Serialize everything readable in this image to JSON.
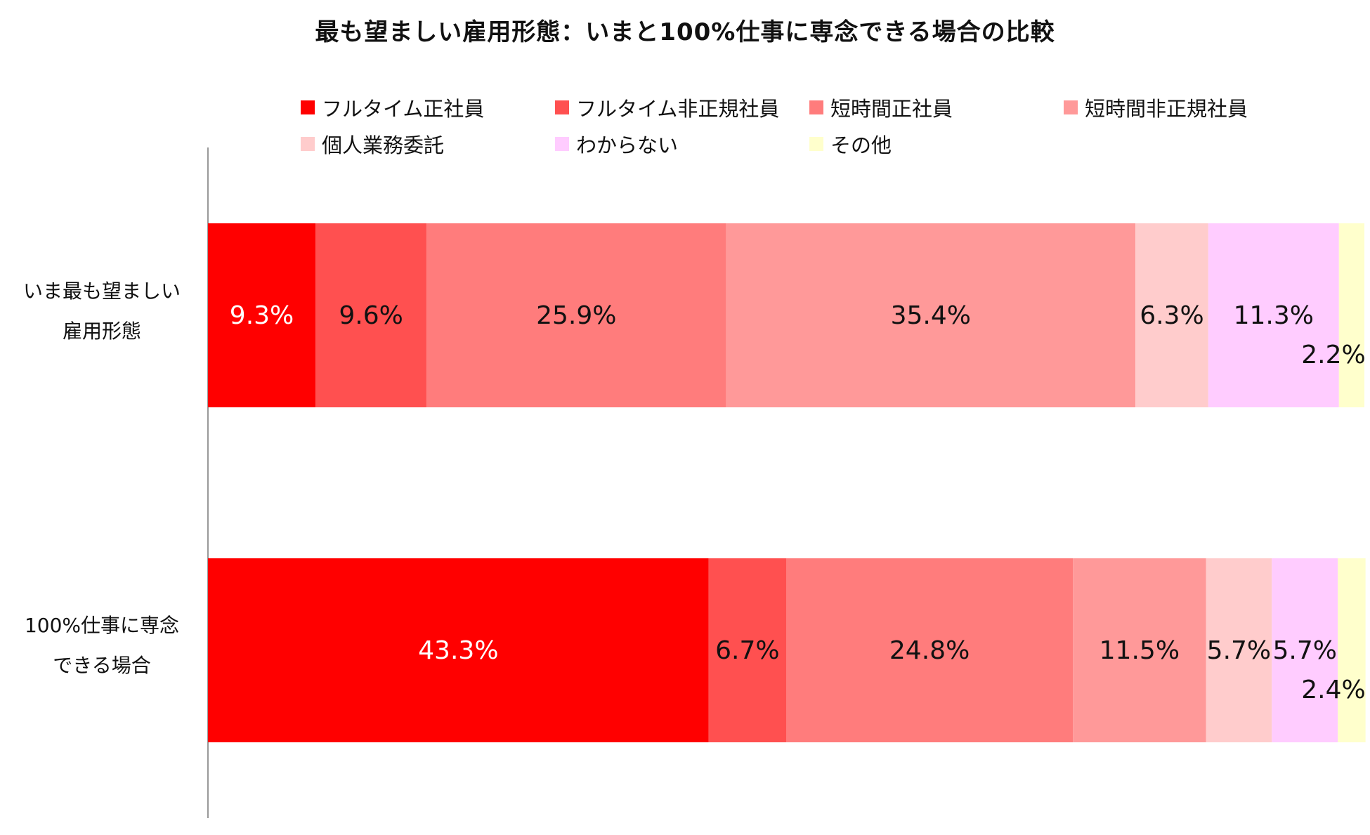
{
  "chart_data": {
    "type": "bar",
    "orientation": "horizontal",
    "stacked": true,
    "normalized": true,
    "title": "最も望ましい雇用形態：いまと100%仕事に専念できる場合の比較",
    "categories": [
      [
        "いま最も望ましい",
        "雇用形態"
      ],
      [
        "100%仕事に専念",
        "できる場合"
      ]
    ],
    "series": [
      {
        "name": "フルタイム正社員",
        "color": "#ff0000",
        "label_color": "#ffffff",
        "values": [
          9.3,
          43.3
        ],
        "labels": [
          "9.3%",
          "43.3%"
        ]
      },
      {
        "name": "フルタイム非正規社員",
        "color": "#ff5050",
        "label_color": "#111111",
        "values": [
          9.6,
          6.7
        ],
        "labels": [
          "9.6%",
          "6.7%"
        ]
      },
      {
        "name": "短時間正社員",
        "color": "#ff7c7c",
        "label_color": "#111111",
        "values": [
          25.9,
          24.8
        ],
        "labels": [
          "25.9%",
          "24.8%"
        ]
      },
      {
        "name": "短時間非正規社員",
        "color": "#ff9999",
        "label_color": "#111111",
        "values": [
          35.4,
          11.5
        ],
        "labels": [
          "35.4%",
          "11.5%"
        ]
      },
      {
        "name": "個人業務委託",
        "color": "#ffcccc",
        "label_color": "#111111",
        "values": [
          6.3,
          5.7
        ],
        "labels": [
          "6.3%",
          "5.7%"
        ]
      },
      {
        "name": "わからない",
        "color": "#ffccff",
        "label_color": "#111111",
        "values": [
          11.3,
          5.7
        ],
        "labels": [
          "11.3%",
          "5.7%"
        ]
      },
      {
        "name": "その他",
        "color": "#ffffcc",
        "label_color": "#111111",
        "values": [
          2.2,
          2.4
        ],
        "labels": [
          "2.2%",
          "2.4%"
        ]
      }
    ],
    "xlim": [
      0,
      100
    ],
    "legend_position": "top",
    "grid": false
  }
}
